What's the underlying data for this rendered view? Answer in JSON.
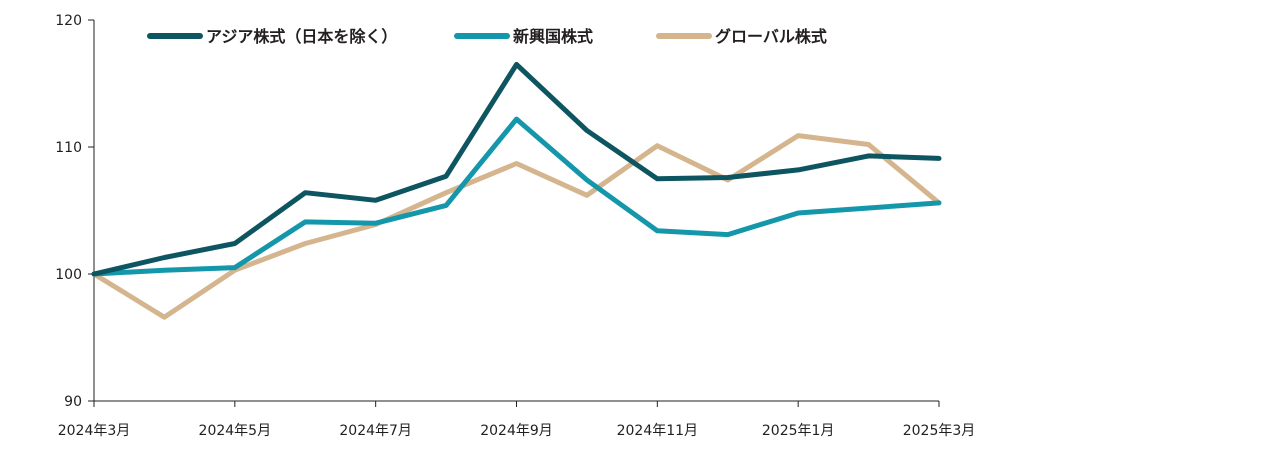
{
  "chart_data": {
    "type": "line",
    "title": "",
    "xlabel": "",
    "ylabel": "",
    "x": [
      "2024-03",
      "2024-04",
      "2024-05",
      "2024-06",
      "2024-07",
      "2024-08",
      "2024-09",
      "2024-10",
      "2024-11",
      "2024-12",
      "2025-01",
      "2025-02",
      "2025-03"
    ],
    "x_tick_labels": [
      "2024年3月",
      "2024年5月",
      "2024年7月",
      "2024年9月",
      "2024年11月",
      "2025年1月",
      "2025年3月"
    ],
    "x_tick_index": [
      0,
      2,
      4,
      6,
      8,
      10,
      12
    ],
    "ylim": [
      90,
      120
    ],
    "y_ticks": [
      90,
      100,
      110,
      120
    ],
    "grid": false,
    "legend_position": "top",
    "series": [
      {
        "name": "アジア株式（日本を除く）",
        "color": "#0d5560",
        "values": [
          100.0,
          101.3,
          102.4,
          106.4,
          105.8,
          107.7,
          116.5,
          111.3,
          107.5,
          107.6,
          108.2,
          109.3,
          109.1
        ]
      },
      {
        "name": "新興国株式",
        "color": "#1597ab",
        "values": [
          100.0,
          100.3,
          100.5,
          104.1,
          104.0,
          105.4,
          112.2,
          107.4,
          103.4,
          103.1,
          104.8,
          105.2,
          105.6
        ]
      },
      {
        "name": "グローバル株式",
        "color": "#d4b58d",
        "values": [
          100.0,
          96.6,
          100.3,
          102.4,
          103.9,
          106.4,
          108.7,
          106.2,
          110.1,
          107.4,
          110.9,
          110.2,
          105.6
        ]
      }
    ]
  }
}
